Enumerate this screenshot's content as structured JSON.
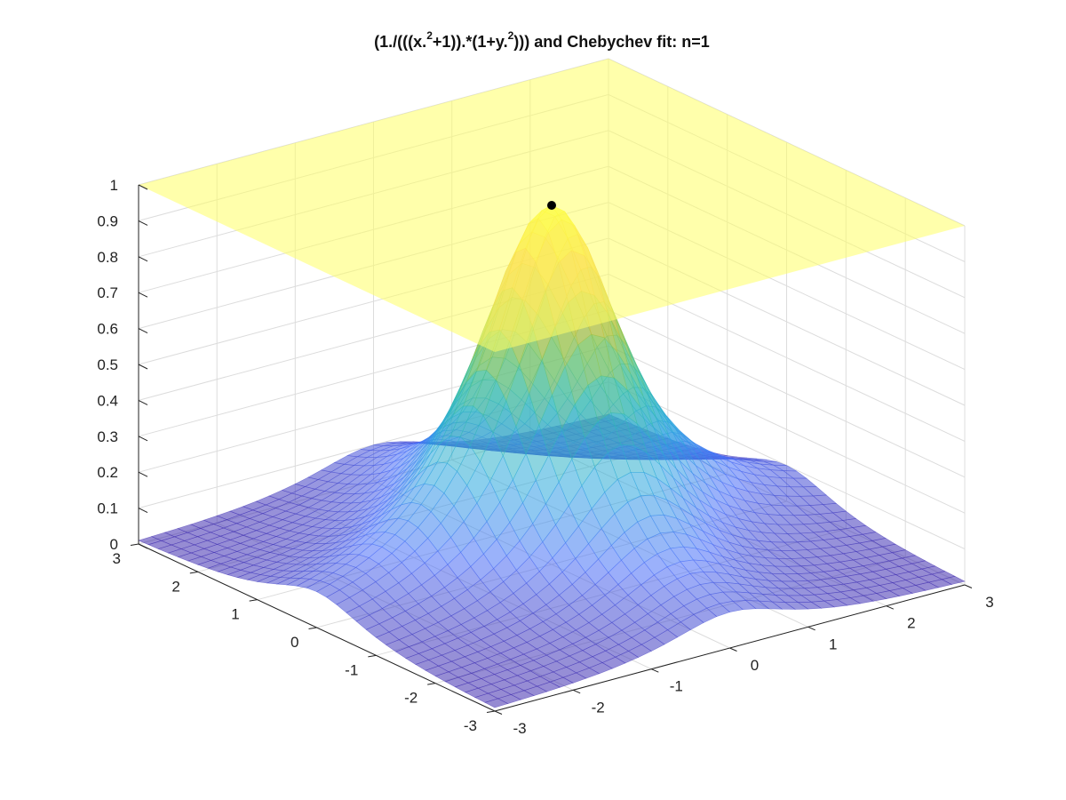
{
  "chart_data": {
    "type": "surface",
    "title": {
      "prefix": "(1./(((x.",
      "sup1": "2",
      "mid": "+1)).*(1+y.",
      "sup2": "2",
      "suffix": "))) and Chebychev fit: n=1"
    },
    "xlabel": "",
    "ylabel": "",
    "zlabel": "",
    "function": "1/((x^2+1)*(1+y^2))",
    "xlim": [
      -3,
      3
    ],
    "ylim": [
      -3,
      3
    ],
    "zlim": [
      0,
      1
    ],
    "x_ticks": [
      "-3",
      "-2",
      "-1",
      "0",
      "1",
      "2",
      "3"
    ],
    "y_ticks": [
      "-3",
      "-2",
      "-1",
      "0",
      "1",
      "2",
      "3"
    ],
    "z_ticks": [
      "0",
      "0.1",
      "0.2",
      "0.3",
      "0.4",
      "0.5",
      "0.6",
      "0.7",
      "0.8",
      "0.9",
      "1"
    ],
    "fit_plane_z": 1,
    "fit_plane_color": "#ffff66",
    "peak_point": {
      "x": 0,
      "y": 0,
      "z": 1
    },
    "surface_colormap": [
      "#3e26a8",
      "#4a6ef8",
      "#2aa7df",
      "#34c0a8",
      "#a8c63a",
      "#f6b93a",
      "#f9fb15"
    ],
    "grid": true,
    "legend": "none"
  }
}
